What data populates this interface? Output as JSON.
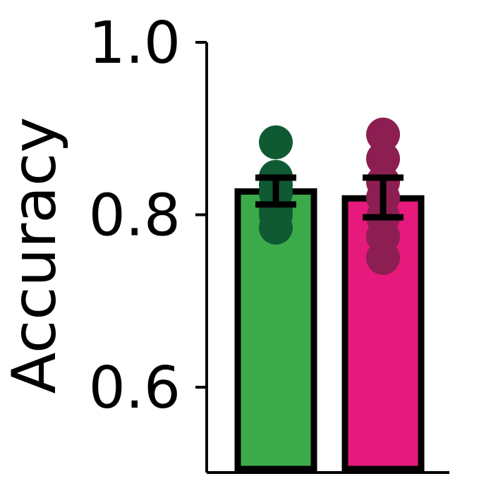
{
  "chart_data": {
    "type": "bar",
    "title": "",
    "xlabel": "",
    "ylabel": "Accuracy",
    "ylim": [
      0.5,
      1.0
    ],
    "yticks": [
      0.6,
      0.8,
      1.0
    ],
    "ytick_labels": [
      "0.6",
      "0.8",
      "1.0"
    ],
    "grid": false,
    "legend": "none",
    "bars": [
      {
        "value": 0.827,
        "err_low": 0.812,
        "err_high": 0.843,
        "fill": "#3daa4a",
        "point_color": "#0f5a32",
        "points": [
          0.884,
          0.844,
          0.835,
          0.825,
          0.808,
          0.8,
          0.785
        ]
      },
      {
        "value": 0.819,
        "err_low": 0.797,
        "err_high": 0.843,
        "fill": "#e6197c",
        "point_color": "#8c1e52",
        "points": [
          0.893,
          0.865,
          0.838,
          0.82,
          0.797,
          0.775,
          0.75
        ]
      }
    ]
  }
}
